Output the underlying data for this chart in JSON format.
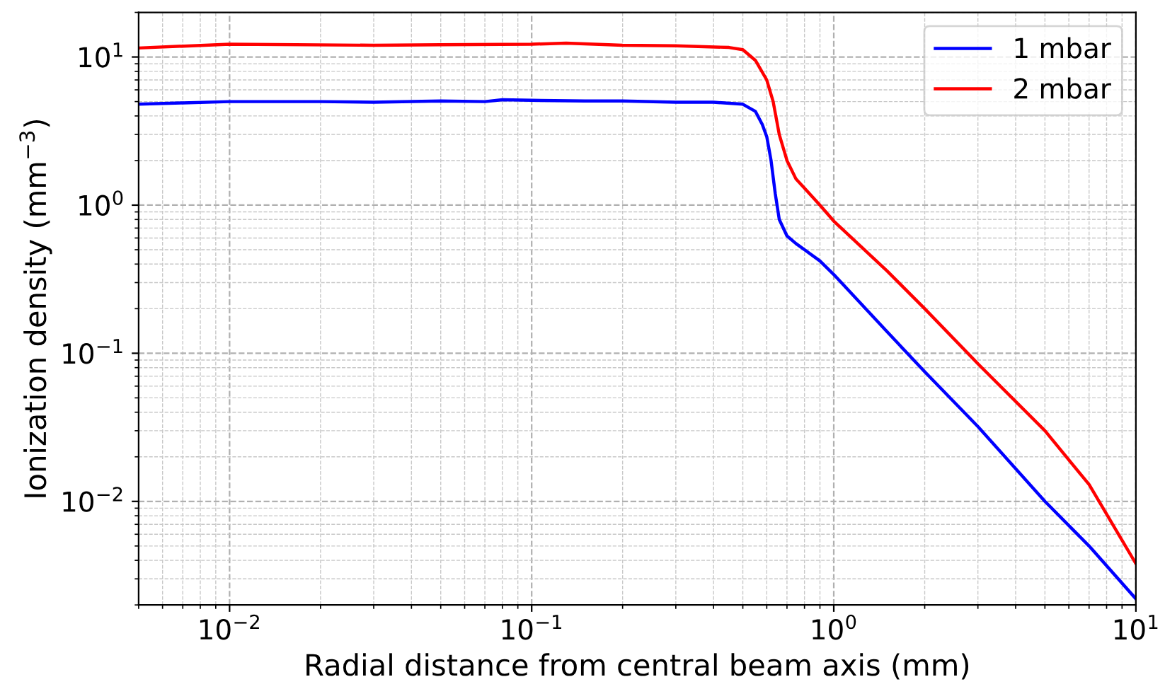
{
  "chart_data": {
    "type": "line",
    "xlabel": "Radial distance from central beam axis (mm)",
    "ylabel": "Ionization density (mm$^{−3}$)",
    "log": "xy",
    "grid": true,
    "legend": "top right",
    "xlim": [
      0.005,
      10
    ],
    "ylim": [
      0.002,
      20
    ],
    "xticks": [
      {
        "value": 0.01,
        "label": "10$^{−2}$"
      },
      {
        "value": 0.1,
        "label": "10$^{−1}$"
      },
      {
        "value": 1,
        "label": "10$^{0}$"
      },
      {
        "value": 10,
        "label": "10$^{1}$"
      }
    ],
    "yticks": [
      {
        "value": 0.01,
        "label": "10$^{−2}$"
      },
      {
        "value": 0.1,
        "label": "10$^{−1}$"
      },
      {
        "value": 1,
        "label": "10$^{0}$"
      },
      {
        "value": 10,
        "label": "10$^{1}$"
      }
    ],
    "series": [
      {
        "name": "1 mbar",
        "color": "#0000ff",
        "x": [
          0.005,
          0.007,
          0.01,
          0.02,
          0.03,
          0.05,
          0.07,
          0.08,
          0.1,
          0.15,
          0.2,
          0.3,
          0.4,
          0.5,
          0.55,
          0.58,
          0.6,
          0.62,
          0.64,
          0.66,
          0.7,
          0.75,
          0.8,
          0.9,
          1.0,
          1.5,
          2,
          3,
          5,
          7,
          10
        ],
        "values": [
          4.8,
          4.9,
          5.0,
          5.0,
          4.95,
          5.05,
          5.0,
          5.15,
          5.1,
          5.05,
          5.05,
          4.95,
          4.95,
          4.8,
          4.3,
          3.5,
          2.9,
          2.0,
          1.2,
          0.8,
          0.62,
          0.55,
          0.5,
          0.42,
          0.34,
          0.14,
          0.075,
          0.032,
          0.01,
          0.005,
          0.0022
        ]
      },
      {
        "name": "2 mbar",
        "color": "#ff0000",
        "x": [
          0.005,
          0.01,
          0.03,
          0.05,
          0.1,
          0.13,
          0.2,
          0.3,
          0.45,
          0.5,
          0.55,
          0.6,
          0.63,
          0.66,
          0.7,
          0.75,
          0.8,
          0.9,
          1.0,
          1.5,
          2,
          3,
          5,
          7,
          10
        ],
        "values": [
          11.5,
          12.2,
          12.0,
          12.1,
          12.2,
          12.4,
          12.0,
          11.9,
          11.6,
          11.2,
          9.5,
          7,
          5,
          3,
          2.0,
          1.5,
          1.3,
          1.0,
          0.78,
          0.36,
          0.2,
          0.085,
          0.03,
          0.013,
          0.0038
        ]
      }
    ]
  }
}
